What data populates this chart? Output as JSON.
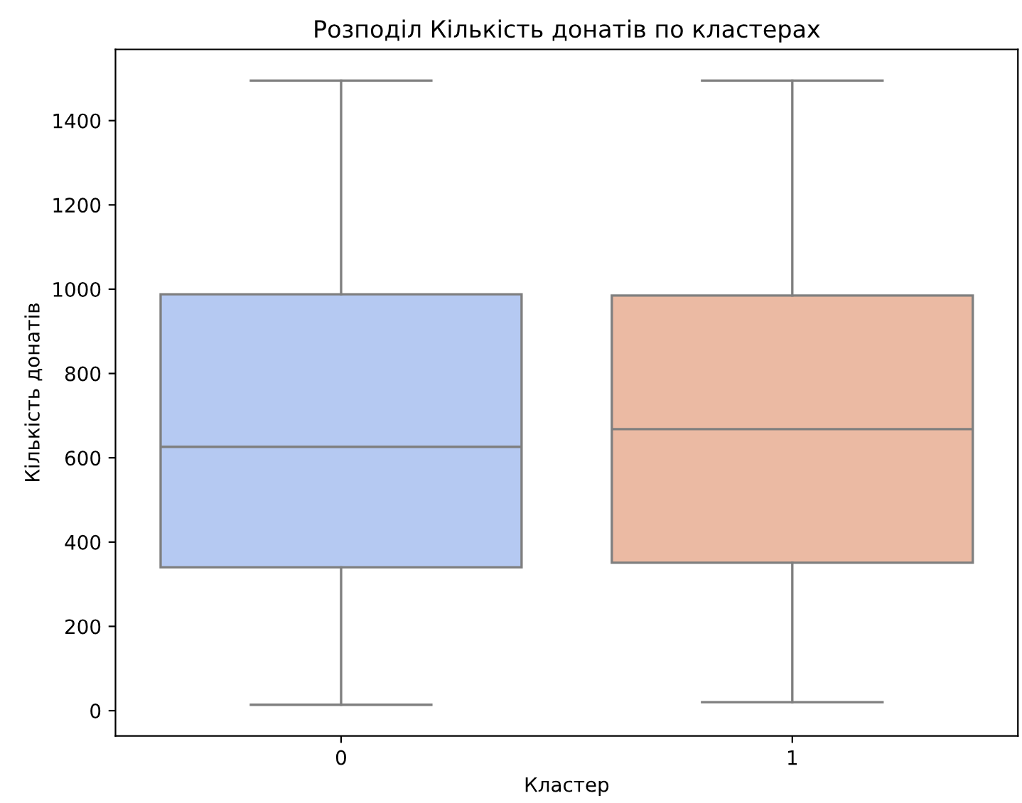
{
  "chart_data": {
    "type": "box",
    "title": "Розподіл Кількість донатів по кластерах",
    "xlabel": "Кластер",
    "ylabel": "Кількість донатів",
    "categories": [
      "0",
      "1"
    ],
    "colors": [
      "#b5c9f2",
      "#ebbaa3"
    ],
    "boxes": [
      {
        "low": 14,
        "q1": 340,
        "median": 626,
        "q3": 988,
        "high": 1495
      },
      {
        "low": 20,
        "q1": 351,
        "median": 668,
        "q3": 985,
        "high": 1495
      }
    ],
    "ylim": [
      -60,
      1569
    ],
    "yticks": [
      0,
      200,
      400,
      600,
      800,
      1000,
      1200,
      1400
    ],
    "grid": false
  }
}
